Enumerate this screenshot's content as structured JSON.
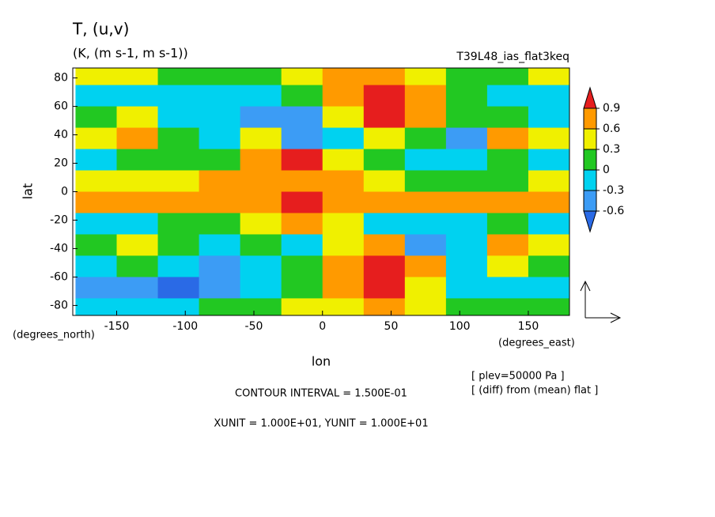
{
  "chart_data": {
    "type": "contour",
    "title": "T, (u,v)",
    "subtitle": "(K, (m s-1, m s-1))",
    "run": "T39L48_ias_flat3keq",
    "x_label": "lon",
    "y_label": "lat",
    "x_unit_label": "(degrees_east)",
    "y_unit_label": "(degrees_north)",
    "notes": [
      "[ plev=50000 Pa ]",
      "[ (diff) from (mean) flat ]"
    ],
    "contour_interval": "CONTOUR INTERVAL = 1.500E-01",
    "units_note": "XUNIT = 1.000E+01, YUNIT = 1.000E+01",
    "xlim": [
      -182,
      180
    ],
    "ylim": [
      -87,
      87
    ],
    "xticks": [
      -150,
      -100,
      -50,
      0,
      50,
      100,
      150
    ],
    "yticks": [
      -80,
      -60,
      -40,
      -20,
      0,
      20,
      40,
      60,
      80
    ],
    "levels": [
      -0.6,
      -0.3,
      0,
      0.3,
      0.6,
      0.9
    ],
    "colors": [
      "#2a6ae6",
      "#3c9cf5",
      "#00d2f0",
      "#22c822",
      "#f0f000",
      "#ff9a00",
      "#e61e1e"
    ],
    "x": [
      -165,
      -135,
      -105,
      -75,
      -45,
      -15,
      15,
      45,
      75,
      105,
      135,
      165
    ],
    "y": [
      82.5,
      67.5,
      52.5,
      37.5,
      22.5,
      7.5,
      -7.5,
      -22.5,
      -37.5,
      -52.5,
      -67.5,
      -82.5
    ],
    "z": [
      [
        0.4,
        0.4,
        0.1,
        0.1,
        0.1,
        0.4,
        0.7,
        0.8,
        0.4,
        0.1,
        0.1,
        0.4
      ],
      [
        -0.1,
        -0.1,
        -0.1,
        -0.1,
        -0.1,
        0.1,
        0.7,
        1.0,
        0.6,
        0.1,
        -0.1,
        -0.1
      ],
      [
        0.1,
        0.3,
        -0.1,
        -0.1,
        -0.4,
        -0.5,
        0.4,
        1.0,
        0.7,
        0.1,
        0.1,
        -0.1
      ],
      [
        0.4,
        0.7,
        0.1,
        -0.1,
        0.3,
        -0.6,
        -0.1,
        0.3,
        0.1,
        -0.4,
        0.6,
        0.3
      ],
      [
        -0.1,
        0.1,
        0.1,
        0.2,
        0.6,
        0.9,
        0.4,
        0.1,
        -0.1,
        -0.1,
        0.1,
        -0.1
      ],
      [
        0.5,
        0.5,
        0.4,
        0.6,
        0.6,
        0.8,
        0.7,
        0.3,
        0.1,
        0.2,
        0.2,
        0.4
      ],
      [
        0.7,
        0.6,
        0.6,
        0.7,
        0.8,
        0.9,
        0.8,
        0.6,
        0.7,
        0.8,
        0.7,
        0.6
      ],
      [
        -0.1,
        -0.1,
        0.1,
        0.1,
        0.5,
        0.8,
        0.3,
        -0.1,
        -0.1,
        -0.1,
        0.1,
        -0.1
      ],
      [
        0.1,
        0.5,
        0.1,
        -0.1,
        0.1,
        -0.1,
        0.3,
        0.7,
        -0.4,
        -0.1,
        0.6,
        0.3
      ],
      [
        -0.1,
        0.1,
        -0.1,
        -0.4,
        -0.1,
        0.1,
        0.6,
        1.0,
        0.6,
        -0.1,
        0.3,
        0.1
      ],
      [
        -0.4,
        -0.4,
        -0.7,
        -0.4,
        -0.1,
        0.1,
        0.6,
        1.0,
        0.4,
        -0.1,
        -0.1,
        -0.1
      ],
      [
        -0.1,
        -0.1,
        -0.1,
        0.1,
        0.1,
        0.3,
        0.4,
        0.7,
        0.3,
        0.1,
        0.1,
        0.1
      ]
    ]
  }
}
